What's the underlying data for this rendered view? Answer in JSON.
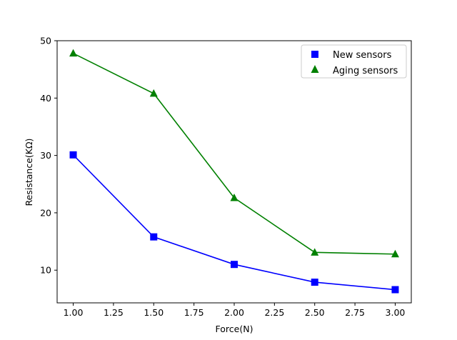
{
  "chart_data": {
    "type": "line",
    "title": "",
    "xlabel": "Force(N)",
    "ylabel": "Resistance(KΩ)",
    "xlim": [
      0.9,
      3.1
    ],
    "ylim": [
      4.3,
      50
    ],
    "xticks": [
      1.0,
      1.25,
      1.5,
      1.75,
      2.0,
      2.25,
      2.5,
      2.75,
      3.0
    ],
    "xtick_labels": [
      "1.00",
      "1.25",
      "1.50",
      "1.75",
      "2.00",
      "2.25",
      "2.50",
      "2.75",
      "3.00"
    ],
    "yticks": [
      10,
      20,
      30,
      40,
      50
    ],
    "ytick_labels": [
      "10",
      "20",
      "30",
      "40",
      "50"
    ],
    "legend_position": "top-right",
    "series": [
      {
        "name": "New sensors",
        "color": "#0000ff",
        "marker": "square",
        "x": [
          1.0,
          1.5,
          2.0,
          2.5,
          3.0
        ],
        "y": [
          30.1,
          15.8,
          11.0,
          7.9,
          6.6
        ]
      },
      {
        "name": "Aging sensors",
        "color": "#008000",
        "marker": "triangle",
        "x": [
          1.0,
          1.5,
          2.0,
          2.5,
          3.0
        ],
        "y": [
          47.8,
          40.8,
          22.6,
          13.1,
          12.8
        ]
      }
    ]
  }
}
